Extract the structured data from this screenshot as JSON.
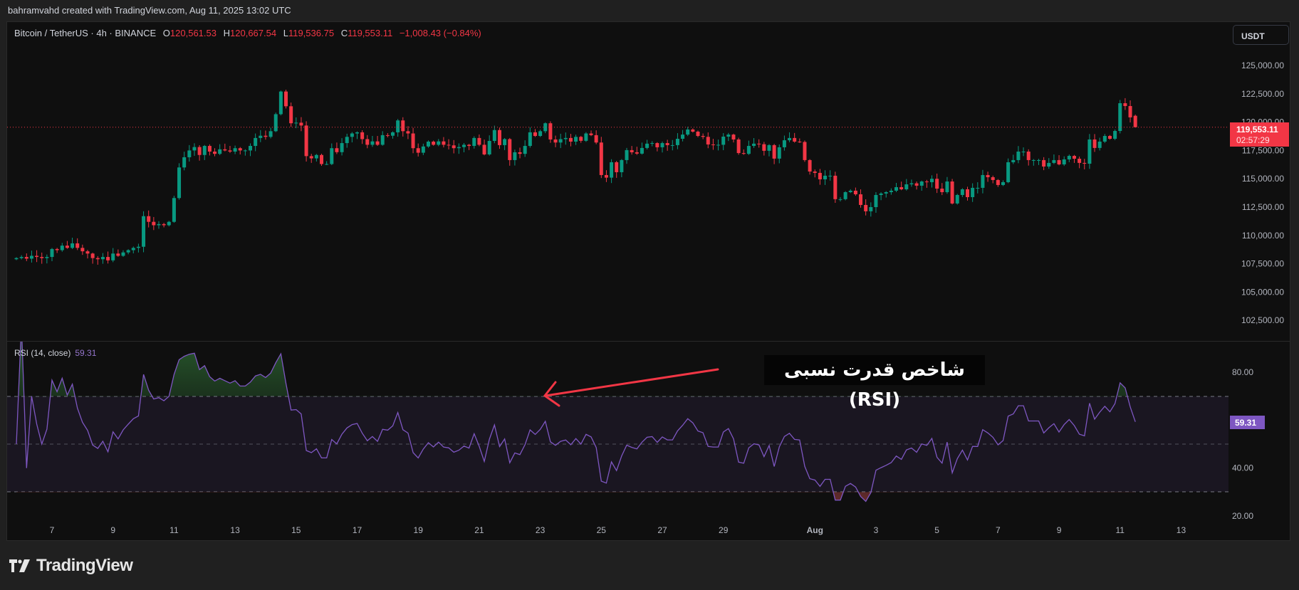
{
  "header": {
    "credit": "bahramvahd created with TradingView.com, Aug 11, 2025 13:02 UTC"
  },
  "legend": {
    "symbol": "Bitcoin / TetherUS · 4h · BINANCE",
    "o_label": "O",
    "o": "120,561.53",
    "h_label": "H",
    "h": "120,667.54",
    "l_label": "L",
    "l": "119,536.75",
    "c_label": "C",
    "c": "119,553.11",
    "change": "−1,008.43 (−0.84%)"
  },
  "currency_button": "USDT",
  "price_tag": {
    "price": "119,553.11",
    "countdown": "02:57:29"
  },
  "rsi": {
    "label": "RSI (14, close)",
    "value": "59.31"
  },
  "annotation": {
    "text": "شاخص قدرت نسبی (RSI)",
    "arrow_color": "#f23645"
  },
  "logo": {
    "text": "TradingView"
  },
  "colors": {
    "up": "#089981",
    "down": "#f23645",
    "rsi_line": "#7e57c2",
    "background": "#0f0f0f"
  },
  "chart_data": [
    {
      "type": "candlestick",
      "symbol": "BTCUSDT",
      "interval": "4h",
      "last_candle_time": "2025-08-11T12:00:00Z",
      "last_candle": {
        "open": 120561.53,
        "high": 120667.54,
        "low": 119536.75,
        "close": 119553.11
      },
      "ylim": [
        101000,
        127500
      ],
      "price_axis_ticks": [
        "125,000.00",
        "122,500.00",
        "120,000.00",
        "117,500.00",
        "115,000.00",
        "112,500.00",
        "110,000.00",
        "107,500.00",
        "105,000.00",
        "102,500.00"
      ],
      "x_axis_ticks": [
        {
          "label": "7",
          "date": "2025-07-07"
        },
        {
          "label": "9",
          "date": "2025-07-09"
        },
        {
          "label": "11",
          "date": "2025-07-11"
        },
        {
          "label": "13",
          "date": "2025-07-13"
        },
        {
          "label": "15",
          "date": "2025-07-15"
        },
        {
          "label": "17",
          "date": "2025-07-17"
        },
        {
          "label": "19",
          "date": "2025-07-19"
        },
        {
          "label": "21",
          "date": "2025-07-21"
        },
        {
          "label": "23",
          "date": "2025-07-23"
        },
        {
          "label": "25",
          "date": "2025-07-25"
        },
        {
          "label": "27",
          "date": "2025-07-27"
        },
        {
          "label": "29",
          "date": "2025-07-29"
        },
        {
          "label": "Aug",
          "date": "2025-08-01"
        },
        {
          "label": "3",
          "date": "2025-08-03"
        },
        {
          "label": "5",
          "date": "2025-08-05"
        },
        {
          "label": "7",
          "date": "2025-08-07"
        },
        {
          "label": "9",
          "date": "2025-08-09"
        },
        {
          "label": "11",
          "date": "2025-08-11"
        },
        {
          "label": "13",
          "date": "2025-08-13"
        }
      ],
      "closes": [
        108000,
        108100,
        107950,
        108200,
        108100,
        108000,
        108100,
        108800,
        108700,
        109100,
        108900,
        109300,
        108900,
        108600,
        108400,
        108000,
        107900,
        108100,
        107800,
        108400,
        108200,
        108500,
        108700,
        108900,
        109000,
        111700,
        111200,
        110900,
        111000,
        110900,
        111200,
        113300,
        116000,
        116900,
        117500,
        117800,
        117100,
        117900,
        117400,
        117200,
        117600,
        117500,
        117400,
        117700,
        117500,
        117500,
        117900,
        118600,
        118800,
        118700,
        119200,
        120700,
        122700,
        121400,
        119900,
        119950,
        119700,
        117000,
        116800,
        117100,
        116300,
        116300,
        117700,
        117350,
        118150,
        118700,
        119000,
        119100,
        118500,
        118000,
        118300,
        118000,
        118850,
        118800,
        119100,
        120150,
        119200,
        119000,
        117700,
        117300,
        117850,
        118280,
        118000,
        118300,
        118000,
        117950,
        117700,
        117800,
        118000,
        117900,
        118600,
        118000,
        117150,
        118340,
        119300,
        117970,
        118500,
        116650,
        117340,
        117200,
        117900,
        119100,
        118780,
        119200,
        119900,
        118470,
        118200,
        118500,
        118600,
        118280,
        118700,
        118350,
        119000,
        118850,
        118200,
        115330,
        115100,
        116460,
        115580,
        116650,
        117530,
        117340,
        117220,
        117720,
        118100,
        118150,
        117780,
        118150,
        117970,
        117970,
        118530,
        118900,
        119350,
        119160,
        118780,
        118700,
        118030,
        118000,
        118000,
        118720,
        118900,
        118470,
        117270,
        117200,
        117900,
        118100,
        118050,
        117470,
        117970,
        116780,
        117780,
        118400,
        118600,
        118280,
        118250,
        116650,
        115640,
        115520,
        114950,
        115270,
        115270,
        113200,
        113200,
        113820,
        113950,
        113630,
        112690,
        112130,
        112500,
        113570,
        113700,
        113820,
        113950,
        114260,
        114070,
        114510,
        114600,
        114390,
        114760,
        114700,
        115000,
        114130,
        113820,
        114760,
        112820,
        113570,
        114070,
        113380,
        114200,
        114200,
        115330,
        115140,
        114890,
        114450,
        114700,
        116460,
        116650,
        117400,
        117400,
        116650,
        116650,
        116650,
        116080,
        116400,
        116650,
        116270,
        116710,
        117020,
        116770,
        116400,
        116330,
        118470,
        117720,
        118280,
        118780,
        118530,
        119220,
        121670,
        121420,
        120420,
        119553.11
      ]
    },
    {
      "type": "line",
      "indicator": "RSI (14, close)",
      "last_value": 59.31,
      "ylim": [
        15,
        90
      ],
      "y_axis_ticks": [
        "80.00",
        "40.00",
        "20.00"
      ],
      "bands": {
        "upper": 70,
        "middle": 50,
        "lower": 30
      }
    }
  ]
}
